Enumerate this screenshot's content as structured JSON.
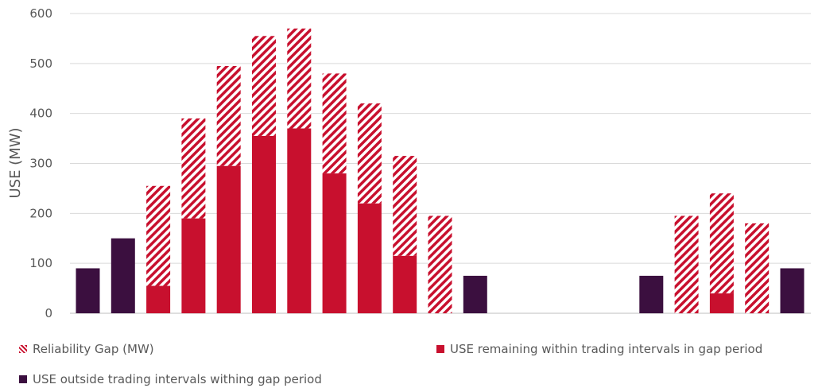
{
  "chart_data": {
    "type": "bar",
    "stacked": true,
    "ylabel": "USE (MW)",
    "ylim": [
      0,
      600
    ],
    "yticks": [
      0,
      100,
      200,
      300,
      400,
      500,
      600
    ],
    "grid": true,
    "legend_position": "bottom",
    "categories": [
      "",
      "",
      "",
      "",
      "",
      "",
      "",
      "",
      "",
      "",
      "",
      "",
      "",
      "",
      "",
      "",
      "",
      "",
      "",
      "",
      ""
    ],
    "series": [
      {
        "name": "USE outside trading intervals withing gap period",
        "color": "#3b0f3f",
        "values": [
          90,
          150,
          0,
          0,
          0,
          0,
          0,
          0,
          0,
          0,
          0,
          75,
          0,
          0,
          0,
          0,
          75,
          0,
          0,
          0,
          90
        ]
      },
      {
        "name": "USE remaining within trading intervals in gap period",
        "color": "#c8102e",
        "values": [
          0,
          0,
          55,
          190,
          295,
          355,
          370,
          280,
          220,
          115,
          0,
          0,
          0,
          0,
          0,
          0,
          0,
          0,
          40,
          0,
          0
        ]
      },
      {
        "name": "Reliability Gap (MW)",
        "color": "#c8102e",
        "pattern": "hatched",
        "values": [
          0,
          0,
          200,
          200,
          200,
          200,
          200,
          200,
          200,
          200,
          195,
          0,
          0,
          0,
          0,
          0,
          0,
          195,
          200,
          180,
          0
        ]
      }
    ]
  },
  "legend": {
    "gap": "Reliability Gap (MW)",
    "remaining": "USE remaining within trading intervals in gap period",
    "outside": "USE outside trading intervals withing gap period"
  }
}
